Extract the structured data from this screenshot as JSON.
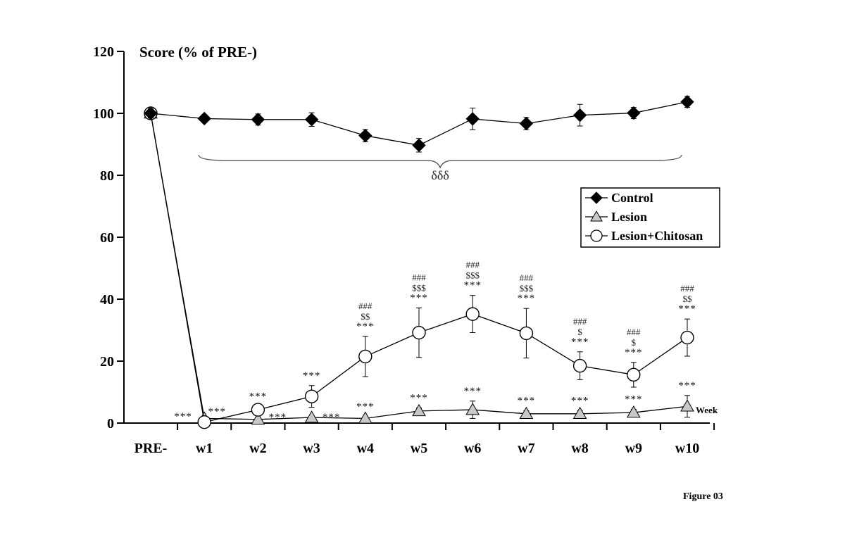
{
  "figure_label": "Figure 03",
  "chart_data": {
    "type": "line",
    "ylabel": "Score (% of PRE-)",
    "xlabel": "Week",
    "ylim": [
      0,
      120
    ],
    "yticks": [
      "0",
      "20",
      "40",
      "60",
      "80",
      "100",
      "120"
    ],
    "categories": [
      "PRE-",
      "w1",
      "w2",
      "w3",
      "w4",
      "w5",
      "w6",
      "w7",
      "w8",
      "w9",
      "w10"
    ],
    "grid": false,
    "legend_position": "right",
    "series": [
      {
        "name": "Control",
        "marker": "diamond",
        "fill": "#000000",
        "values": [
          100,
          98.3,
          98,
          98,
          92.8,
          89.7,
          98.2,
          96.7,
          99.4,
          100.1,
          103.7
        ],
        "errors": [
          1.5,
          1.2,
          1.8,
          2.2,
          2.0,
          2.2,
          3.5,
          2.0,
          3.5,
          1.8,
          1.8
        ]
      },
      {
        "name": "Lesion",
        "marker": "triangle",
        "fill": "#c8c8c8",
        "values": [
          100,
          1.5,
          1.2,
          1.8,
          1.5,
          3.9,
          4.3,
          3.0,
          3.0,
          3.4,
          5.4
        ],
        "errors": [
          0,
          0.5,
          0.6,
          0.6,
          0.6,
          1.0,
          2.8,
          1.0,
          1.0,
          1.0,
          3.5
        ]
      },
      {
        "name": "Lesion+Chitosan",
        "marker": "circle",
        "fill": "#ffffff",
        "values": [
          100,
          0.3,
          4.3,
          8.6,
          21.5,
          29.2,
          35.2,
          29.0,
          18.5,
          15.6,
          27.6
        ],
        "errors": [
          0,
          0,
          1.0,
          3.5,
          6.5,
          8.0,
          6.0,
          8.0,
          4.5,
          4.0,
          6.0
        ]
      }
    ],
    "brace_label": "δδδ",
    "annotations": {
      "lesion_stars": [
        "",
        "***",
        "***",
        "***",
        "***",
        "***",
        "***",
        "***",
        "***",
        "***",
        "***"
      ],
      "chitosan_stars": [
        "",
        "***",
        "***",
        "***",
        "***",
        "***",
        "***",
        "***",
        "***",
        "***",
        "***"
      ],
      "chitosan_dollar": [
        "",
        "",
        "",
        "",
        "$$",
        "$$$",
        "$$$",
        "$$$",
        "$",
        "$",
        "$$"
      ],
      "chitosan_hash": [
        "",
        "",
        "",
        "",
        "###",
        "###",
        "###",
        "###",
        "###",
        "###",
        "###"
      ]
    }
  }
}
